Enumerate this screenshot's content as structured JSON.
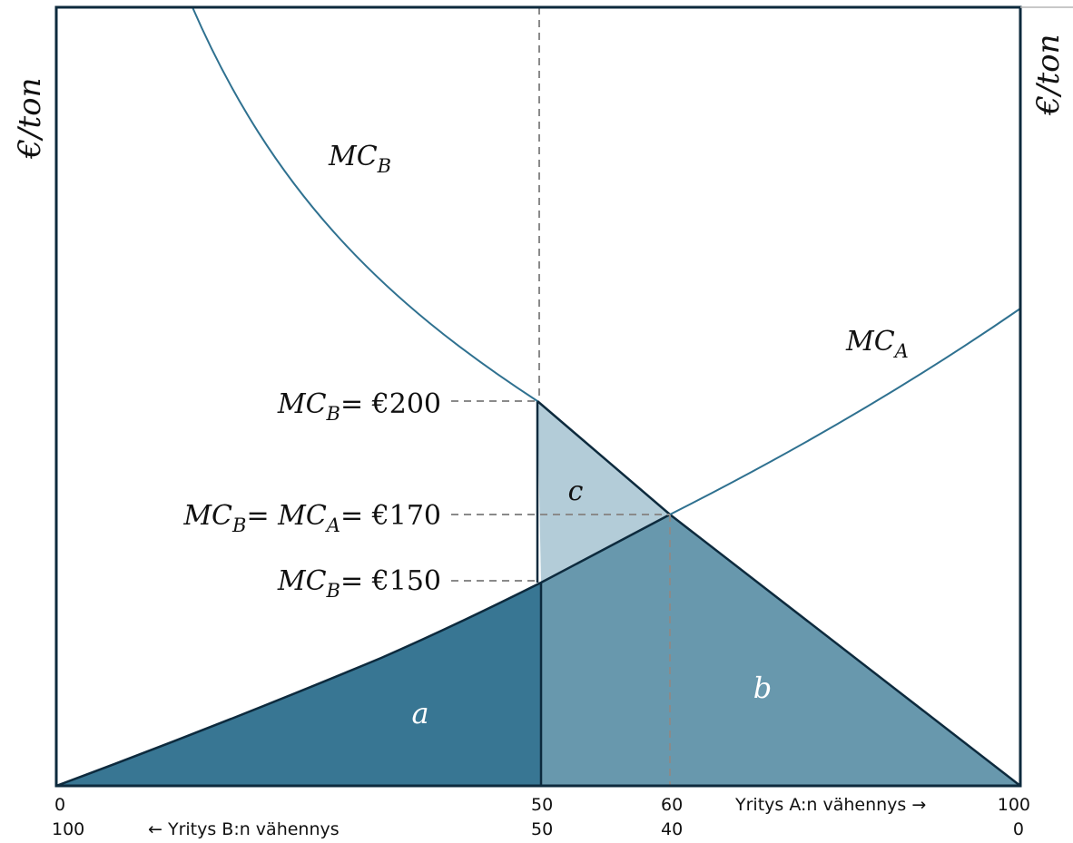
{
  "colors": {
    "frame": "#0d2a3d",
    "curve": "#2f7190",
    "area_a": "#387693",
    "area_b": "#6898ad",
    "area_c": "#b3ccd8",
    "dashed": "#8a8a8a",
    "white_label": "#ffffff"
  },
  "axes": {
    "left_ylabel": "€/ton",
    "right_ylabel": "€/ton",
    "x_top_ticks": [
      "0",
      "50",
      "60",
      "100"
    ],
    "x_bottom_ticks": [
      "100",
      "50",
      "40",
      "0"
    ],
    "firm_a_label": "Yritys A:n vähennys →",
    "firm_b_label": "← Yritys B:n vähennys"
  },
  "curves": {
    "mc_b": {
      "base": "MC",
      "sub": "B"
    },
    "mc_a": {
      "base": "MC",
      "sub": "A"
    }
  },
  "price_labels": [
    {
      "value": 200,
      "text": "= €200",
      "parts": [
        {
          "base": "MC",
          "sub": "B"
        }
      ]
    },
    {
      "value": 170,
      "text": "= €170",
      "parts": [
        {
          "base": "MC",
          "sub": "B"
        },
        {
          "base": "MC",
          "sub": "A"
        }
      ]
    },
    {
      "value": 150,
      "text": "= €150",
      "parts": [
        {
          "base": "MC",
          "sub": "B"
        }
      ]
    }
  ],
  "areas": {
    "a": "a",
    "b": "b",
    "c": "c"
  },
  "chart_data": {
    "type": "line",
    "x_top": "Yritys A:n vähennys",
    "x_bottom": "Yritys B:n vähennys",
    "ylabel": "€/ton",
    "xlim": [
      0,
      100
    ],
    "series": [
      {
        "name": "MC_A",
        "x": [
          0,
          50,
          60,
          100
        ],
        "y": [
          0,
          150,
          170,
          350
        ]
      },
      {
        "name": "MC_B",
        "x": [
          14,
          50,
          60,
          100
        ],
        "y": [
          540,
          200,
          170,
          0
        ]
      }
    ],
    "reference_values": {
      "MC_B_at_50": 200,
      "equilibrium": 170,
      "MC_A_at_50": 150,
      "equilibrium_x": 60
    },
    "regions": [
      "a",
      "b",
      "c"
    ]
  }
}
